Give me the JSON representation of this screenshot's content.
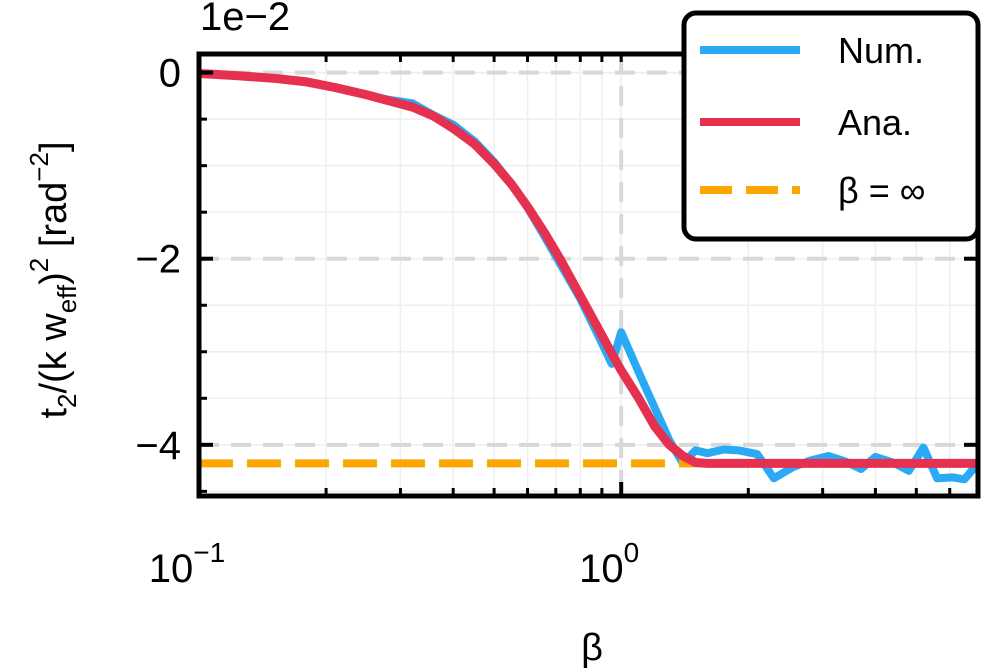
{
  "chart_data": {
    "type": "line",
    "xscale": "log",
    "xlabel": "β",
    "ylabel_parts": {
      "t": "t",
      "sub2": "2",
      "mid": "/(k w",
      "eff": "eff",
      "close": ")",
      "sq": "2",
      "unit": " [rad",
      "neg2": "−2",
      "end": "]"
    },
    "y_multiplier": "1e−2",
    "xlim": [
      0.1,
      7.0
    ],
    "ylim": [
      -4.55,
      0.2
    ],
    "grid": true,
    "legend_position": "top-right",
    "x_ticks": [
      {
        "value": 0.1,
        "base": "10",
        "exp": "−1"
      },
      {
        "value": 1.0,
        "base": "10",
        "exp": "0"
      }
    ],
    "y_ticks": [
      {
        "value": 0,
        "label": "0"
      },
      {
        "value": -2,
        "label": "−2"
      },
      {
        "value": -4,
        "label": "−4"
      }
    ],
    "reference_lines": [
      {
        "axis": "x",
        "value": 1.0
      },
      {
        "axis": "y",
        "value": -4.0
      },
      {
        "axis": "y",
        "value": -2.0
      },
      {
        "axis": "y",
        "value": 0.0
      }
    ],
    "series": [
      {
        "name": "Num.",
        "color": "#2aa9f4",
        "style": "solid",
        "x": [
          0.1,
          0.12,
          0.15,
          0.18,
          0.21,
          0.25,
          0.28,
          0.32,
          0.36,
          0.4,
          0.45,
          0.5,
          0.55,
          0.6,
          0.66,
          0.72,
          0.8,
          0.87,
          0.95,
          1.0,
          1.1,
          1.2,
          1.3,
          1.4,
          1.5,
          1.6,
          1.75,
          1.9,
          2.1,
          2.3,
          2.55,
          2.8,
          3.1,
          3.4,
          3.7,
          4.0,
          4.4,
          4.8,
          5.2,
          5.6,
          6.1,
          6.5,
          7.0
        ],
        "y": [
          -0.01,
          -0.03,
          -0.06,
          -0.1,
          -0.16,
          -0.24,
          -0.29,
          -0.33,
          -0.46,
          -0.56,
          -0.74,
          -0.96,
          -1.2,
          -1.45,
          -1.77,
          -2.07,
          -2.43,
          -2.77,
          -3.13,
          -2.79,
          -3.22,
          -3.6,
          -3.95,
          -4.2,
          -4.06,
          -4.09,
          -4.05,
          -4.06,
          -4.1,
          -4.36,
          -4.24,
          -4.17,
          -4.12,
          -4.18,
          -4.26,
          -4.13,
          -4.19,
          -4.28,
          -4.03,
          -4.36,
          -4.35,
          -4.37,
          -4.2
        ]
      },
      {
        "name": "Ana.",
        "color": "#e5314f",
        "style": "solid",
        "x": [
          0.1,
          0.12,
          0.15,
          0.18,
          0.21,
          0.25,
          0.28,
          0.32,
          0.36,
          0.4,
          0.45,
          0.5,
          0.55,
          0.6,
          0.66,
          0.72,
          0.8,
          0.87,
          0.95,
          1.0,
          1.1,
          1.2,
          1.3,
          1.4,
          1.5,
          1.6,
          1.75,
          1.9,
          2.1,
          2.3,
          2.55,
          2.8,
          3.1,
          3.4,
          3.7,
          4.0,
          4.4,
          4.8,
          5.2,
          5.6,
          6.1,
          6.5,
          7.0
        ],
        "y": [
          -0.01,
          -0.03,
          -0.06,
          -0.1,
          -0.16,
          -0.24,
          -0.3,
          -0.37,
          -0.47,
          -0.6,
          -0.77,
          -0.98,
          -1.2,
          -1.44,
          -1.73,
          -2.02,
          -2.4,
          -2.7,
          -3.02,
          -3.2,
          -3.5,
          -3.8,
          -4.0,
          -4.12,
          -4.19,
          -4.2,
          -4.2,
          -4.2,
          -4.2,
          -4.2,
          -4.2,
          -4.2,
          -4.2,
          -4.2,
          -4.2,
          -4.2,
          -4.2,
          -4.2,
          -4.2,
          -4.2,
          -4.2,
          -4.2,
          -4.2
        ]
      },
      {
        "name": "β = ∞",
        "color": "#ffa500",
        "style": "dashed",
        "x": [
          0.1,
          7.0
        ],
        "y": [
          -4.2,
          -4.2
        ]
      }
    ]
  }
}
